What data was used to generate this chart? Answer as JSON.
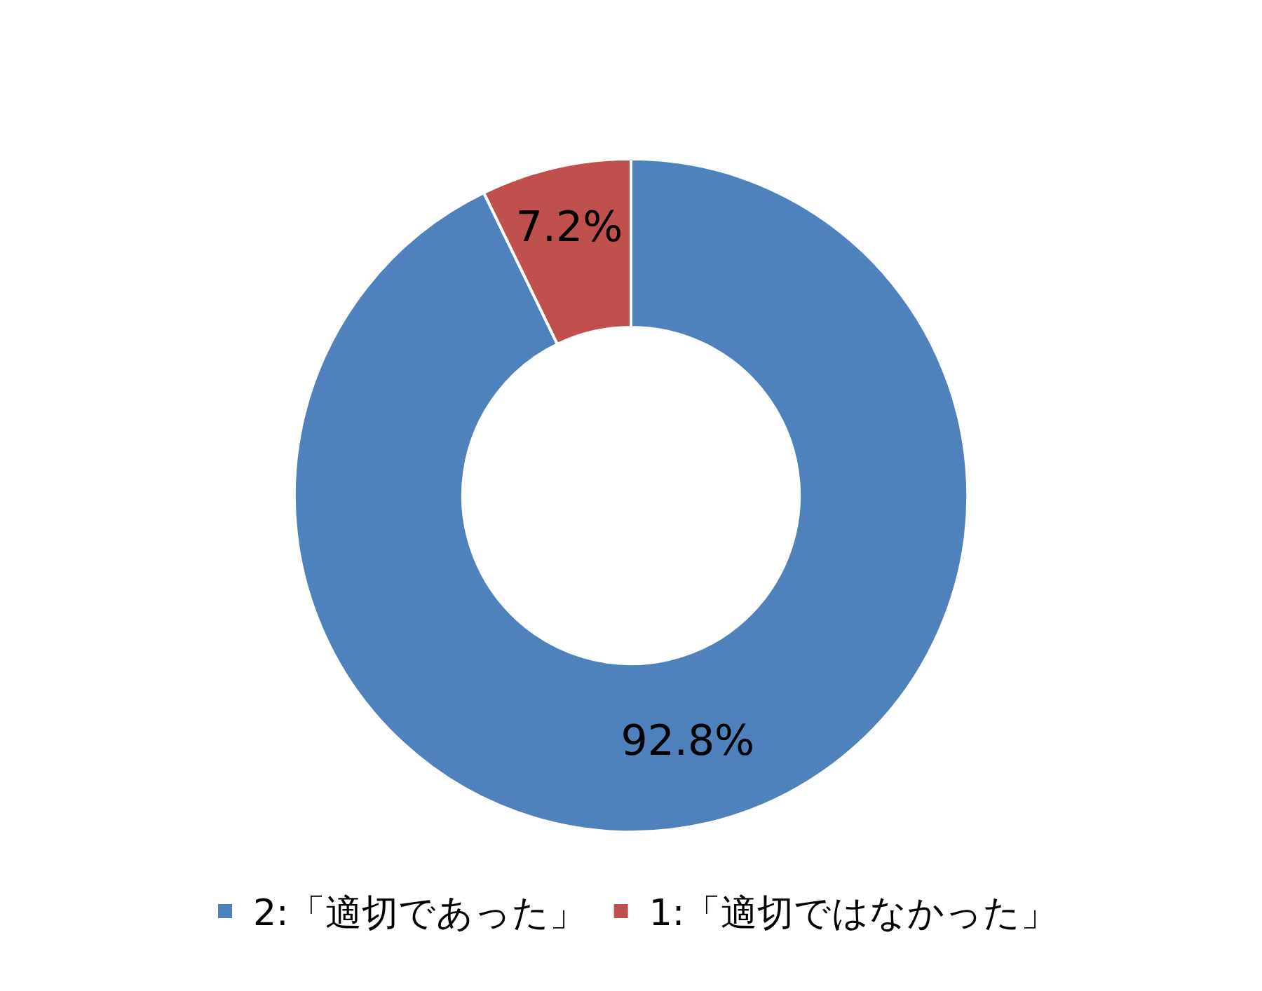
{
  "chart_data": {
    "type": "donut",
    "categories": [
      "2:「適切であった」",
      "1:「適切ではなかった」"
    ],
    "values": [
      92.8,
      7.2
    ],
    "colors": [
      "#4f81bd",
      "#c0504d"
    ],
    "value_labels": [
      "92.8%",
      "7.2%"
    ],
    "legend": "bottom"
  }
}
